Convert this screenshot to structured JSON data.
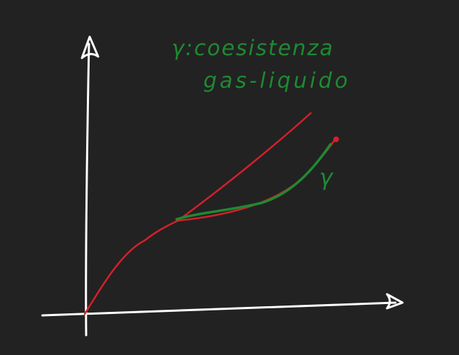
{
  "annotation": {
    "line1": "γ:coesistenza",
    "line2": "gas-liquido"
  },
  "curve_label": "γ",
  "colors": {
    "background": "#222222",
    "axes": "#ffffff",
    "red_curve": "#d4202a",
    "green_curve": "#1e8a32",
    "critical_point": "#d4202a"
  }
}
